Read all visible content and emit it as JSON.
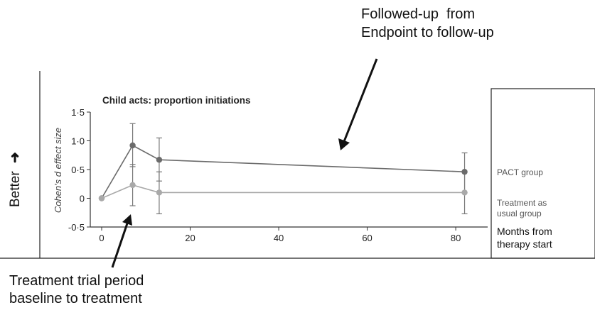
{
  "annotations": {
    "followup_line1": "Followed-up  from",
    "followup_line2": "Endpoint to follow-up",
    "trial_line1": "Treatment trial period",
    "trial_line2": "baseline to treatment",
    "better_label": "Better",
    "better_arrow": "➜"
  },
  "legend": {
    "pact": "PACT group",
    "tau_line1": "Treatment as",
    "tau_line2": "usual group",
    "months_line1": "Months from",
    "months_line2": "therapy start"
  },
  "colors": {
    "pact": "#6b6b6b",
    "tau": "#a9a9a9",
    "errorbar": "#777777",
    "axis": "#333333"
  },
  "chart_data": {
    "type": "line",
    "title": "Child acts: proportion initiations",
    "xlabel": "",
    "ylabel": "Cohen's d effect size",
    "xlim": [
      0,
      84
    ],
    "ylim": [
      -0.5,
      1.5
    ],
    "xticks": [
      0,
      20,
      40,
      60,
      80
    ],
    "yticks": [
      -0.5,
      0,
      0.5,
      1.0,
      1.5
    ],
    "ytick_labels": [
      "-0·5",
      "0",
      "0·5",
      "1·0",
      "1·5"
    ],
    "grid": false,
    "series": [
      {
        "name": "PACT group",
        "points": [
          {
            "x": 0,
            "y": 0,
            "lo": null,
            "hi": null
          },
          {
            "x": 7,
            "y": 0.92,
            "lo": 0.55,
            "hi": 1.3
          },
          {
            "x": 13,
            "y": 0.67,
            "lo": 0.3,
            "hi": 1.05
          },
          {
            "x": 82,
            "y": 0.46,
            "lo": 0.1,
            "hi": 0.79
          }
        ]
      },
      {
        "name": "Treatment as usual group",
        "points": [
          {
            "x": 0,
            "y": 0,
            "lo": null,
            "hi": null
          },
          {
            "x": 7,
            "y": 0.23,
            "lo": -0.13,
            "hi": 0.59
          },
          {
            "x": 13,
            "y": 0.1,
            "lo": -0.27,
            "hi": 0.46
          },
          {
            "x": 82,
            "y": 0.1,
            "lo": -0.27,
            "hi": 0.47
          }
        ]
      }
    ]
  }
}
